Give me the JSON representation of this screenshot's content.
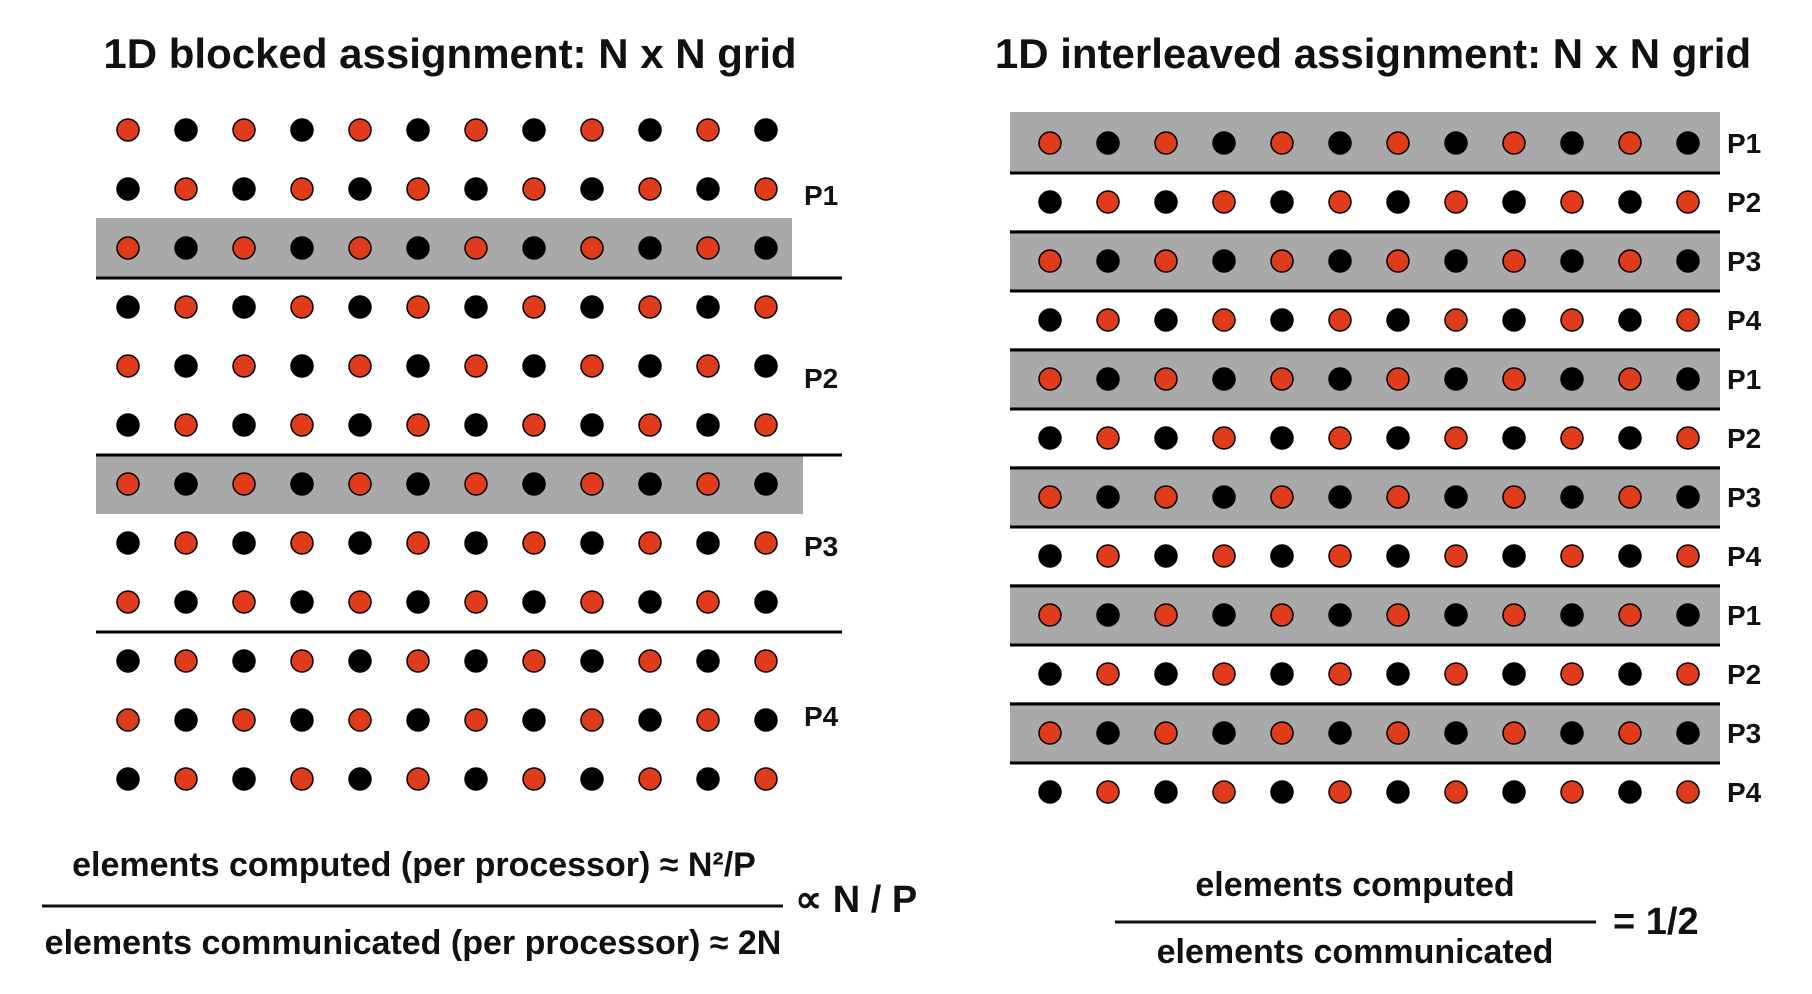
{
  "colors": {
    "red_dot": "#e03c1c",
    "black_dot": "#000000",
    "highlight": "#a9a9a9"
  },
  "left": {
    "title": "1D blocked assignment: N x N grid",
    "rows": 12,
    "cols": 12,
    "odd_row_first_dot": "red",
    "highlight_rows": [
      2,
      6
    ],
    "divider_after_rows": [
      2,
      5,
      8
    ],
    "processor_labels": [
      "P1",
      "P2",
      "P3",
      "P4"
    ],
    "formula": {
      "numerator": "elements computed (per processor) ≈ N²/P",
      "denominator": "elements communicated (per processor)  ≈ 2N",
      "result": "∝ N / P"
    }
  },
  "right": {
    "title": "1D interleaved assignment: N x N grid",
    "rows": 12,
    "cols": 12,
    "highlight_rows": [
      0,
      2,
      4,
      6,
      8,
      10
    ],
    "row_labels": [
      "P1",
      "P2",
      "P3",
      "P4",
      "P1",
      "P2",
      "P3",
      "P4",
      "P1",
      "P2",
      "P3",
      "P4"
    ],
    "formula": {
      "numerator": "elements computed",
      "denominator": "elements communicated",
      "result": "= 1/2"
    }
  }
}
